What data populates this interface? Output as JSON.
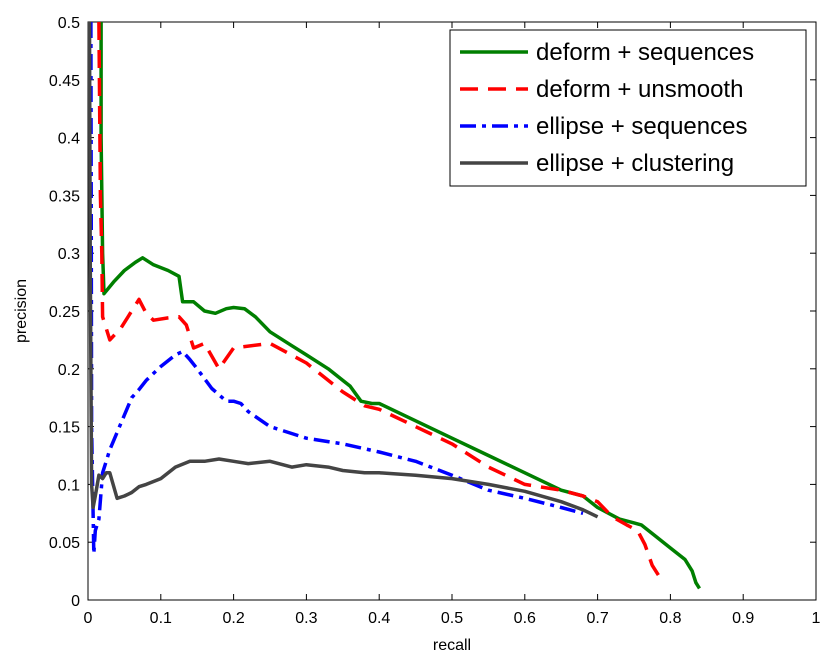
{
  "chart_data": {
    "type": "line",
    "xlabel": "recall",
    "ylabel": "precision",
    "xlim": [
      0,
      1
    ],
    "ylim": [
      0,
      0.5
    ],
    "xticks": [
      "0",
      "0.1",
      "0.2",
      "0.3",
      "0.4",
      "0.5",
      "0.6",
      "0.7",
      "0.8",
      "0.9",
      "1"
    ],
    "yticks": [
      "0",
      "0.05",
      "0.1",
      "0.15",
      "0.2",
      "0.25",
      "0.3",
      "0.35",
      "0.4",
      "0.45",
      "0.5"
    ],
    "legend_position": "top-right",
    "series": [
      {
        "name": "deform + sequences",
        "color": "#007f00",
        "dash": "solid",
        "x": [
          0.018,
          0.018,
          0.02,
          0.022,
          0.035,
          0.05,
          0.065,
          0.075,
          0.09,
          0.11,
          0.125,
          0.13,
          0.145,
          0.16,
          0.175,
          0.19,
          0.2,
          0.215,
          0.23,
          0.25,
          0.28,
          0.3,
          0.33,
          0.35,
          0.36,
          0.375,
          0.39,
          0.4,
          0.45,
          0.5,
          0.55,
          0.6,
          0.65,
          0.68,
          0.7,
          0.73,
          0.76,
          0.78,
          0.8,
          0.82,
          0.83,
          0.835,
          0.84
        ],
        "y": [
          0.5,
          0.4,
          0.3,
          0.265,
          0.275,
          0.285,
          0.292,
          0.296,
          0.29,
          0.285,
          0.28,
          0.258,
          0.258,
          0.25,
          0.248,
          0.252,
          0.253,
          0.252,
          0.245,
          0.232,
          0.22,
          0.212,
          0.2,
          0.19,
          0.185,
          0.172,
          0.17,
          0.17,
          0.155,
          0.14,
          0.125,
          0.11,
          0.095,
          0.09,
          0.08,
          0.07,
          0.065,
          0.055,
          0.045,
          0.035,
          0.025,
          0.015,
          0.01
        ]
      },
      {
        "name": "deform + unsmooth",
        "color": "#ff0000",
        "dash": "dashed",
        "x": [
          0.015,
          0.017,
          0.019,
          0.02,
          0.03,
          0.045,
          0.06,
          0.07,
          0.08,
          0.09,
          0.11,
          0.125,
          0.135,
          0.145,
          0.16,
          0.18,
          0.2,
          0.25,
          0.3,
          0.35,
          0.38,
          0.4,
          0.45,
          0.5,
          0.55,
          0.6,
          0.65,
          0.68,
          0.7,
          0.72,
          0.74,
          0.755,
          0.765,
          0.775,
          0.785
        ],
        "y": [
          0.5,
          0.35,
          0.3,
          0.245,
          0.225,
          0.235,
          0.25,
          0.26,
          0.248,
          0.242,
          0.244,
          0.245,
          0.238,
          0.218,
          0.222,
          0.2,
          0.218,
          0.222,
          0.205,
          0.18,
          0.168,
          0.165,
          0.15,
          0.135,
          0.115,
          0.1,
          0.095,
          0.09,
          0.085,
          0.072,
          0.065,
          0.06,
          0.048,
          0.03,
          0.02
        ]
      },
      {
        "name": "ellipse + sequences",
        "color": "#0000ff",
        "dash": "dashdot",
        "x": [
          0.004,
          0.005,
          0.008,
          0.01,
          0.015,
          0.02,
          0.025,
          0.03,
          0.04,
          0.05,
          0.06,
          0.07,
          0.08,
          0.1,
          0.12,
          0.13,
          0.14,
          0.15,
          0.17,
          0.19,
          0.2,
          0.21,
          0.22,
          0.25,
          0.3,
          0.35,
          0.4,
          0.45,
          0.5,
          0.55,
          0.6,
          0.65,
          0.68
        ],
        "y": [
          0.5,
          0.15,
          0.04,
          0.06,
          0.07,
          0.11,
          0.12,
          0.13,
          0.145,
          0.16,
          0.175,
          0.182,
          0.19,
          0.202,
          0.212,
          0.215,
          0.208,
          0.2,
          0.183,
          0.172,
          0.172,
          0.17,
          0.163,
          0.15,
          0.14,
          0.135,
          0.128,
          0.12,
          0.108,
          0.095,
          0.088,
          0.08,
          0.075
        ]
      },
      {
        "name": "ellipse + clustering",
        "color": "#444444",
        "dash": "solid",
        "x": [
          0.002,
          0.003,
          0.005,
          0.007,
          0.01,
          0.015,
          0.02,
          0.025,
          0.03,
          0.04,
          0.05,
          0.06,
          0.07,
          0.08,
          0.1,
          0.12,
          0.14,
          0.16,
          0.18,
          0.2,
          0.22,
          0.25,
          0.28,
          0.3,
          0.33,
          0.35,
          0.38,
          0.4,
          0.45,
          0.5,
          0.55,
          0.6,
          0.65,
          0.68,
          0.7
        ],
        "y": [
          0.5,
          0.3,
          0.1,
          0.08,
          0.09,
          0.108,
          0.105,
          0.11,
          0.11,
          0.088,
          0.09,
          0.093,
          0.098,
          0.1,
          0.105,
          0.115,
          0.12,
          0.12,
          0.122,
          0.12,
          0.118,
          0.12,
          0.115,
          0.117,
          0.115,
          0.112,
          0.11,
          0.11,
          0.108,
          0.105,
          0.1,
          0.094,
          0.085,
          0.078,
          0.072
        ]
      }
    ]
  }
}
